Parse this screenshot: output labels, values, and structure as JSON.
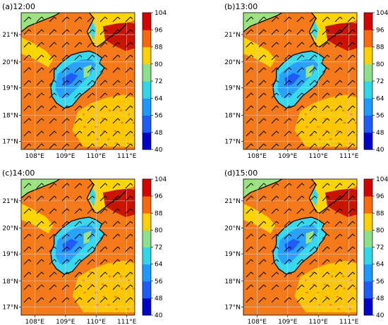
{
  "panels": [
    {
      "title": "(a)12:00"
    },
    {
      "title": "(b)13:00"
    },
    {
      "title": "(c)14:00"
    },
    {
      "title": "(d)15:00"
    }
  ],
  "axes": {
    "x_ticks": [
      "108°E",
      "109°E",
      "110°E",
      "111°E"
    ],
    "y_ticks": [
      "21°N",
      "20°N",
      "19°N",
      "18°N",
      "17°N"
    ]
  },
  "colorbar": {
    "ticks": [
      "104",
      "96",
      "88",
      "80",
      "72",
      "64",
      "56",
      "48",
      "40"
    ],
    "colors": [
      "#0000c8",
      "#1e5cff",
      "#1e9aff",
      "#33d6e6",
      "#8ce08c",
      "#ffd000",
      "#ff6a0f",
      "#d40000"
    ]
  },
  "colors": {
    "ocean_orange": "#f77a1a",
    "yellow": "#ffd400",
    "light_green": "#9be37e",
    "cyan": "#38d9ee",
    "light_blue": "#2aa1ff",
    "blue": "#1e5cff",
    "dark_red": "#c81400",
    "coast": "#000000",
    "grid": "#cfcfcf"
  }
}
